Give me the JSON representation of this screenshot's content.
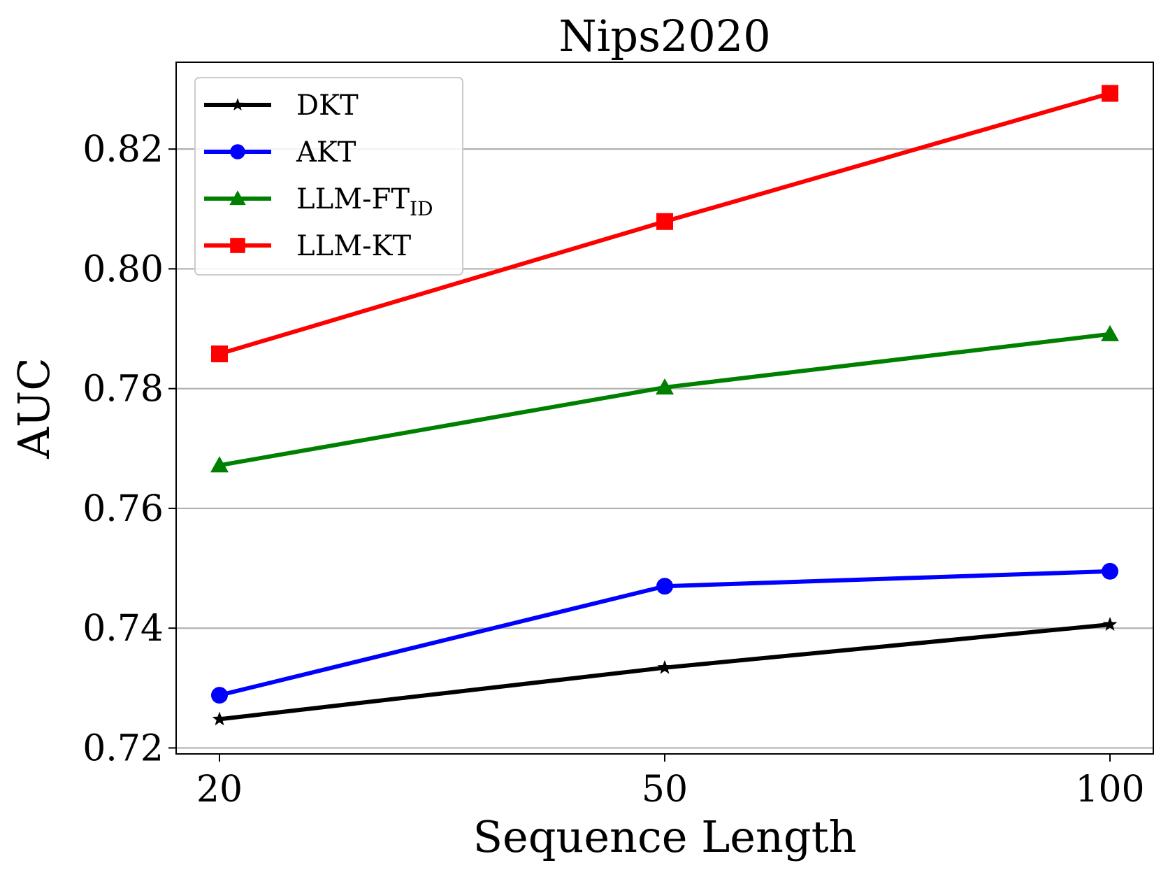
{
  "chart_data": {
    "type": "line",
    "title": "Nips2020",
    "xlabel": "Sequence Length",
    "ylabel": "AUC",
    "categories": [
      "20",
      "50",
      "100"
    ],
    "ylim": [
      0.719,
      0.8345
    ],
    "yticks": [
      "0.72",
      "0.74",
      "0.76",
      "0.78",
      "0.80",
      "0.82"
    ],
    "grid": "horizontal",
    "legend_position": "top-left",
    "series": [
      {
        "name": "DKT",
        "name_main": "DKT",
        "name_sub": "",
        "color": "#000000",
        "marker": "star",
        "values": [
          0.7248,
          0.7334,
          0.7406
        ]
      },
      {
        "name": "AKT",
        "name_main": "AKT",
        "name_sub": "",
        "color": "#0000ff",
        "marker": "circle",
        "values": [
          0.7288,
          0.747,
          0.7495
        ]
      },
      {
        "name": "LLM-FTID",
        "name_main": "LLM-FT",
        "name_sub": "ID",
        "color": "#008000",
        "marker": "triangle",
        "values": [
          0.7672,
          0.7802,
          0.7891
        ]
      },
      {
        "name": "LLM-KT",
        "name_main": "LLM-KT",
        "name_sub": "",
        "color": "#ff0000",
        "marker": "square",
        "values": [
          0.7858,
          0.8079,
          0.8293
        ]
      }
    ]
  }
}
